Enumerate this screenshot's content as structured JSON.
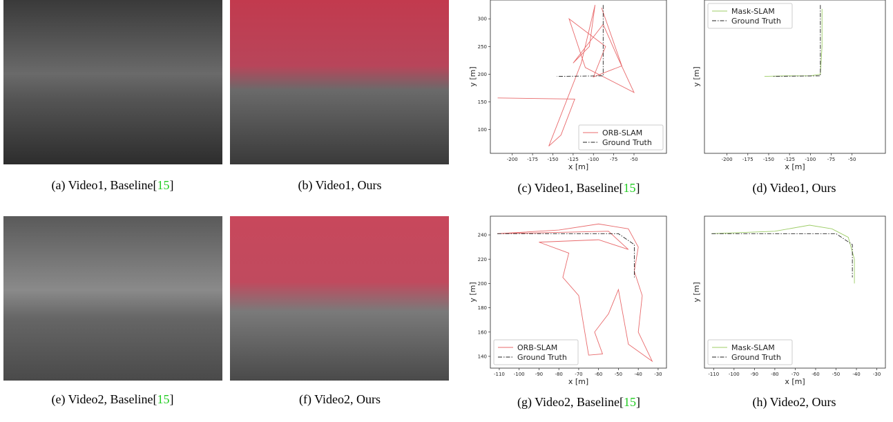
{
  "captions": [
    [
      "(a) Video1, Baseline[",
      "15",
      "]"
    ],
    [
      "(b) Video1, Ours"
    ],
    [
      "(c) Video1, Baseline[",
      "15",
      "]"
    ],
    [
      "(d) Video1, Ours"
    ],
    [
      "(e) Video2, Baseline[",
      "15",
      "]"
    ],
    [
      "(f) Video2, Ours"
    ],
    [
      "(g) Video2, Baseline[",
      "15",
      "]"
    ],
    [
      "(h) Video2, Ours"
    ]
  ],
  "chart_data": [
    {
      "type": "line",
      "xlabel": "x [m]",
      "ylabel": "y [m]",
      "legend": "lower right",
      "xlim": [
        -227,
        -10
      ],
      "ylim": [
        57,
        334
      ],
      "xticks": [
        -200,
        -175,
        -150,
        -125,
        -100,
        -75,
        -50
      ],
      "yticks": [
        100,
        150,
        200,
        250,
        300
      ],
      "series": [
        {
          "name": "ORB-SLAM",
          "color": "#e8696b",
          "style": "solid",
          "x": [
            -218,
            -123,
            -140,
            -155,
            -115,
            -98,
            -105,
            -125,
            -88,
            -70,
            -50,
            -110,
            -130,
            -85,
            -100,
            -65,
            -90
          ],
          "values": [
            157,
            155,
            90,
            70,
            220,
            325,
            250,
            220,
            290,
            230,
            167,
            212,
            300,
            250,
            195,
            215,
            320
          ]
        },
        {
          "name": "Ground Truth",
          "color": "#222222",
          "style": "dashdot",
          "x": [
            -88,
            -88,
            -145
          ],
          "values": [
            325,
            197,
            196
          ]
        }
      ]
    },
    {
      "type": "line",
      "xlabel": "x [m]",
      "ylabel": "y [m]",
      "legend": "upper left",
      "xlim": [
        -227,
        -10
      ],
      "ylim": [
        57,
        334
      ],
      "xticks": [
        -200,
        -175,
        -150,
        -125,
        -100,
        -75,
        -50
      ],
      "series": [
        {
          "name": "Mask-SLAM",
          "color": "#9ccc65",
          "style": "solid",
          "x": [
            -155,
            -130,
            -100,
            -88,
            -86,
            -86,
            -86
          ],
          "values": [
            196,
            197,
            197,
            200,
            250,
            300,
            318
          ]
        },
        {
          "name": "Ground Truth",
          "color": "#222222",
          "style": "dashdot",
          "x": [
            -88,
            -88,
            -145
          ],
          "values": [
            325,
            197,
            196
          ]
        }
      ]
    },
    {
      "type": "line",
      "xlabel": "x [m]",
      "ylabel": "y [m]",
      "legend": "lower left",
      "xlim": [
        -114.5,
        -25.8
      ],
      "ylim": [
        130.3,
        255.4
      ],
      "xticks": [
        -110,
        -100,
        -90,
        -80,
        -70,
        -60,
        -50,
        -40,
        -30
      ],
      "yticks": [
        140,
        160,
        180,
        200,
        220,
        240
      ],
      "series": [
        {
          "name": "ORB-SLAM",
          "color": "#e8696b",
          "style": "solid",
          "x": [
            -111,
            -80,
            -60,
            -45,
            -40,
            -42,
            -38,
            -40,
            -33,
            -45,
            -50,
            -55,
            -62,
            -58,
            -65,
            -70,
            -78,
            -75,
            -90,
            -60,
            -45,
            -55,
            -111
          ],
          "values": [
            241,
            244,
            249,
            245,
            230,
            210,
            190,
            160,
            136,
            150,
            195,
            175,
            160,
            142,
            141,
            190,
            205,
            225,
            234,
            236,
            228,
            243,
            241
          ]
        },
        {
          "name": "Ground Truth",
          "color": "#222222",
          "style": "dashdot",
          "x": [
            -111,
            -50,
            -42,
            -42
          ],
          "values": [
            241,
            241,
            232,
            205
          ]
        }
      ]
    },
    {
      "type": "line",
      "xlabel": "x [m]",
      "ylabel": "y [m]",
      "legend": "lower left",
      "xlim": [
        -114.5,
        -25.8
      ],
      "ylim": [
        130.3,
        255.4
      ],
      "xticks": [
        -110,
        -100,
        -90,
        -80,
        -70,
        -60,
        -50,
        -40,
        -30
      ],
      "series": [
        {
          "name": "Mask-SLAM",
          "color": "#9ccc65",
          "style": "solid",
          "x": [
            -111,
            -80,
            -63,
            -52,
            -44,
            -41,
            -41
          ],
          "values": [
            241,
            243,
            248,
            245,
            238,
            220,
            200
          ]
        },
        {
          "name": "Ground Truth",
          "color": "#222222",
          "style": "dashdot",
          "x": [
            -111,
            -50,
            -42,
            -42
          ],
          "values": [
            241,
            241,
            232,
            205
          ]
        }
      ]
    }
  ]
}
